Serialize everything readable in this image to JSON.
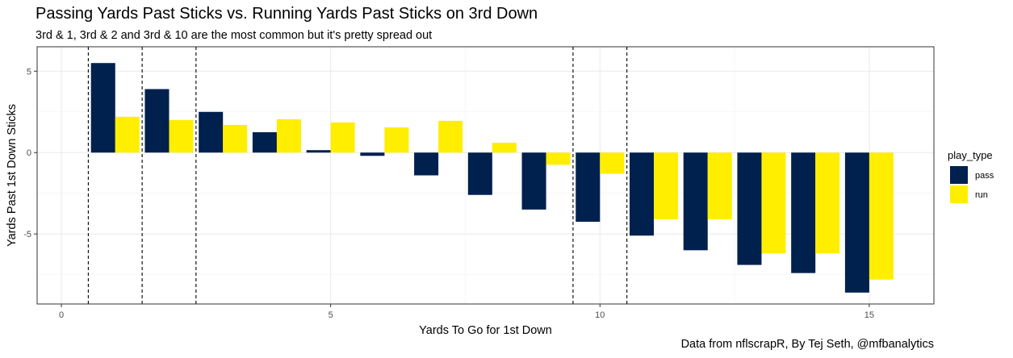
{
  "chart_data": {
    "type": "bar",
    "title": "Passing Yards Past Sticks vs. Running Yards Past Sticks on 3rd Down",
    "subtitle": "3rd & 1, 3rd & 2 and 3rd & 10 are the most common but it's pretty spread out",
    "caption": "Data from nflscrapR, By Tej Seth, @mfbanalytics",
    "xlabel": "Yards To Go for 1st Down",
    "ylabel": "Yards Past 1st Down Sticks",
    "xlim": [
      -0.45,
      16.2
    ],
    "ylim": [
      -9.3,
      6.5
    ],
    "x_ticks": [
      0,
      5,
      10,
      15
    ],
    "y_ticks": [
      -5,
      0,
      5
    ],
    "grid": true,
    "legend": {
      "title": "play_type",
      "position": "right"
    },
    "x": [
      1,
      2,
      3,
      4,
      5,
      6,
      7,
      8,
      9,
      10,
      11,
      12,
      13,
      14,
      15
    ],
    "series": [
      {
        "name": "pass",
        "color": "#00204E",
        "values": [
          5.5,
          3.9,
          2.5,
          1.25,
          0.15,
          -0.2,
          -1.4,
          -2.6,
          -3.5,
          -4.25,
          -5.1,
          -6.0,
          -6.9,
          -7.4,
          -8.6
        ]
      },
      {
        "name": "run",
        "color": "#FFEE00",
        "values": [
          2.2,
          2.0,
          1.7,
          2.05,
          1.85,
          1.55,
          1.95,
          0.6,
          -0.75,
          -1.3,
          -4.1,
          -4.1,
          -6.2,
          -6.2,
          -7.8
        ]
      }
    ],
    "vlines": [
      0.5,
      1.5,
      2.5,
      9.5,
      10.5
    ]
  }
}
